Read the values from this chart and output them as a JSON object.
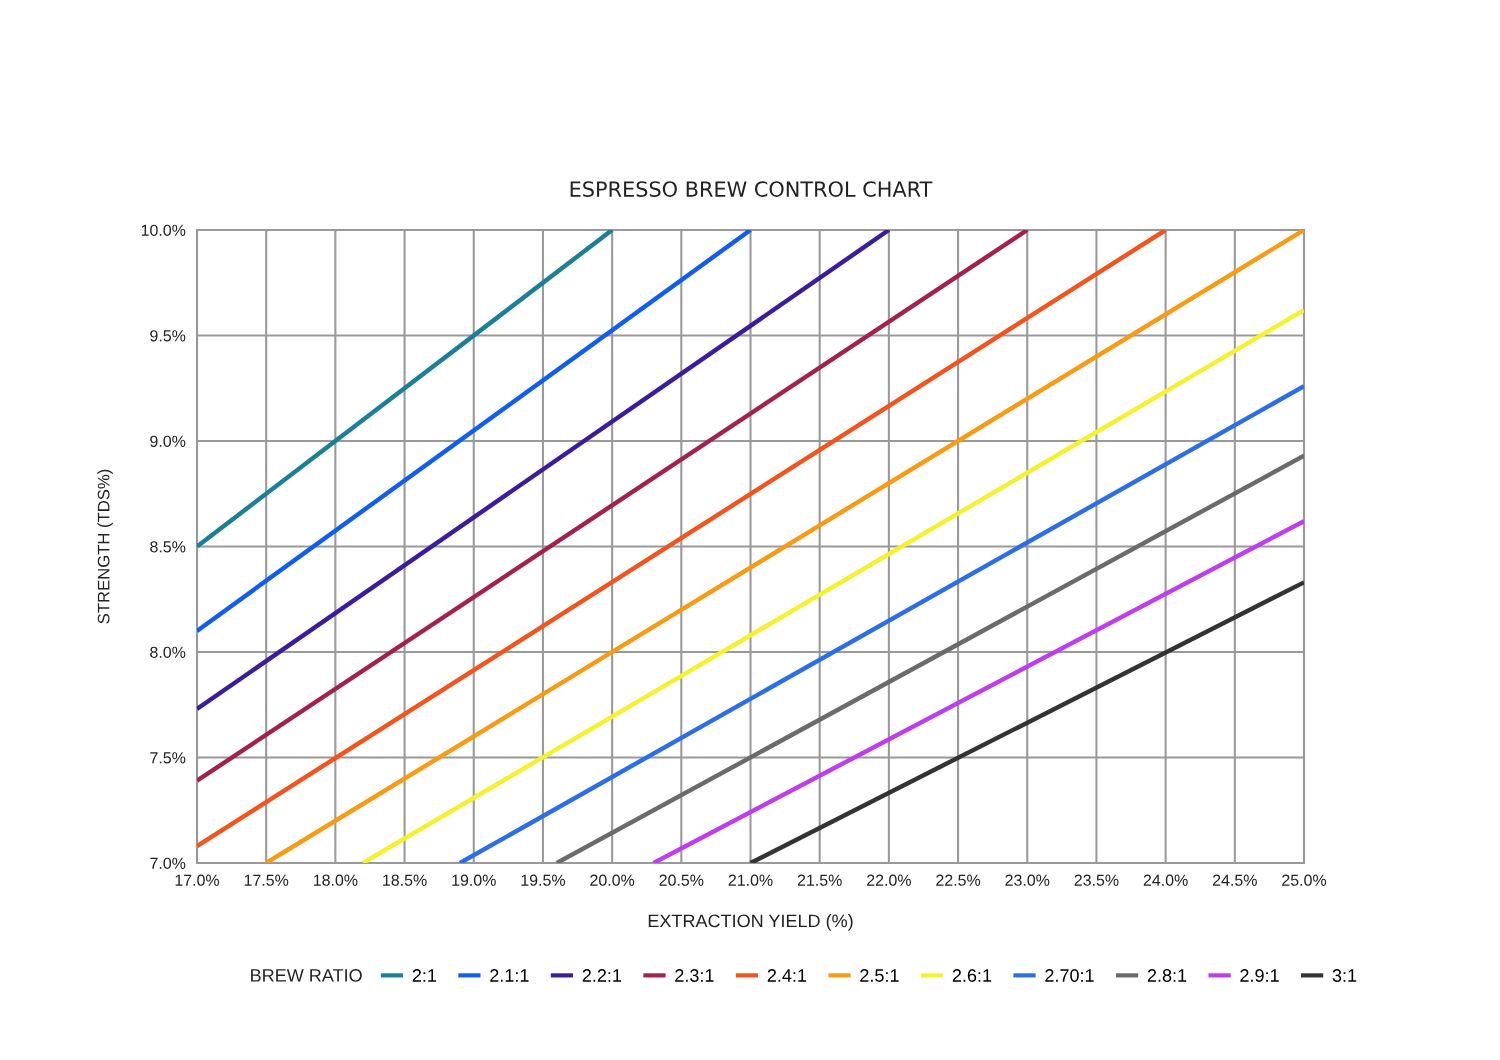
{
  "chart_data": {
    "type": "line",
    "title": "ESPRESSO BREW CONTROL CHART",
    "xlabel": "EXTRACTION YIELD (%)",
    "ylabel": "STRENGTH (TDS%)",
    "legend_title": "BREW RATIO",
    "series": [
      {
        "name": "2:1",
        "color": "#1a7f97",
        "x": [
          17.0,
          20.0
        ],
        "values": [
          8.5,
          10.0
        ]
      },
      {
        "name": "2.1:1",
        "color": "#0f5ef0",
        "x": [
          17.0,
          21.0
        ],
        "values": [
          8.1,
          10.0
        ]
      },
      {
        "name": "2.2:1",
        "color": "#3b1c9c",
        "x": [
          17.0,
          22.0
        ],
        "values": [
          7.73,
          10.0
        ]
      },
      {
        "name": "2.3:1",
        "color": "#a3214f",
        "x": [
          17.0,
          23.0
        ],
        "values": [
          7.39,
          10.0
        ]
      },
      {
        "name": "2.4:1",
        "color": "#f2541b",
        "x": [
          17.0,
          24.0
        ],
        "values": [
          7.08,
          10.0
        ]
      },
      {
        "name": "2.5:1",
        "color": "#f89a12",
        "x": [
          17.5,
          25.0
        ],
        "values": [
          7.0,
          10.0
        ]
      },
      {
        "name": "2.6:1",
        "color": "#f4f22f",
        "x": [
          18.2,
          25.0
        ],
        "values": [
          7.0,
          9.62
        ]
      },
      {
        "name": "2.70:1",
        "color": "#2b6ee8",
        "x": [
          18.9,
          25.0
        ],
        "values": [
          7.0,
          9.26
        ]
      },
      {
        "name": "2.8:1",
        "color": "#6b6b6b",
        "x": [
          19.6,
          25.0
        ],
        "values": [
          7.0,
          8.93
        ]
      },
      {
        "name": "2.9:1",
        "color": "#c03cf0",
        "x": [
          20.3,
          25.0
        ],
        "values": [
          7.0,
          8.62
        ]
      },
      {
        "name": "3:1",
        "color": "#333333",
        "x": [
          21.0,
          25.0
        ],
        "values": [
          7.0,
          8.33
        ]
      }
    ],
    "xlim": [
      17.0,
      25.0
    ],
    "xticks": [
      {
        "value": 17.0,
        "label": "17.0%"
      },
      {
        "value": 17.5,
        "label": "17.5%"
      },
      {
        "value": 18.0,
        "label": "18.0%"
      },
      {
        "value": 18.5,
        "label": "18.5%"
      },
      {
        "value": 19.0,
        "label": "19.0%"
      },
      {
        "value": 19.5,
        "label": "19.5%"
      },
      {
        "value": 20.0,
        "label": "20.0%"
      },
      {
        "value": 20.5,
        "label": "20.5%"
      },
      {
        "value": 21.0,
        "label": "21.0%"
      },
      {
        "value": 21.5,
        "label": "21.5%"
      },
      {
        "value": 22.0,
        "label": "22.0%"
      },
      {
        "value": 22.5,
        "label": "22.5%"
      },
      {
        "value": 23.0,
        "label": "23.0%"
      },
      {
        "value": 23.5,
        "label": "23.5%"
      },
      {
        "value": 24.0,
        "label": "24.0%"
      },
      {
        "value": 24.5,
        "label": "24.5%"
      },
      {
        "value": 25.0,
        "label": "25.0%"
      }
    ],
    "ylim": [
      7.0,
      10.0
    ],
    "yticks": [
      {
        "value": 7.0,
        "label": "7.0%"
      },
      {
        "value": 7.5,
        "label": "7.5%"
      },
      {
        "value": 8.0,
        "label": "8.0%"
      },
      {
        "value": 8.5,
        "label": "8.5%"
      },
      {
        "value": 9.0,
        "label": "9.0%"
      },
      {
        "value": 9.5,
        "label": "9.5%"
      },
      {
        "value": 10.0,
        "label": "10.0%"
      }
    ],
    "grid": true,
    "legend": "bottom",
    "marker": "none",
    "line_style": "solid"
  }
}
